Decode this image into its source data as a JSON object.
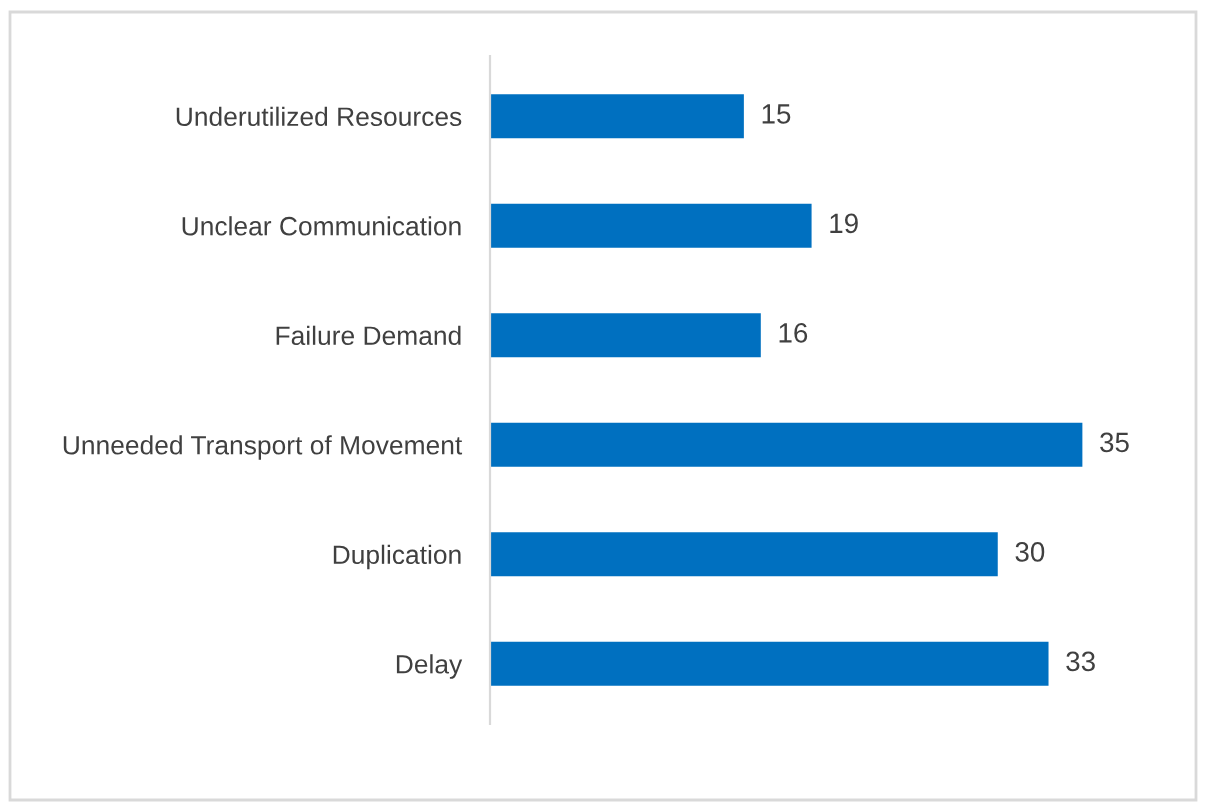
{
  "chart_data": {
    "type": "bar",
    "orientation": "horizontal",
    "categories": [
      "Underutilized Resources",
      "Unclear Communication",
      "Failure Demand",
      "Unneeded Transport of Movement",
      "Duplication",
      "Delay"
    ],
    "values": [
      15,
      19,
      16,
      35,
      30,
      33
    ],
    "color": "#0070c0",
    "data_labels": true
  }
}
